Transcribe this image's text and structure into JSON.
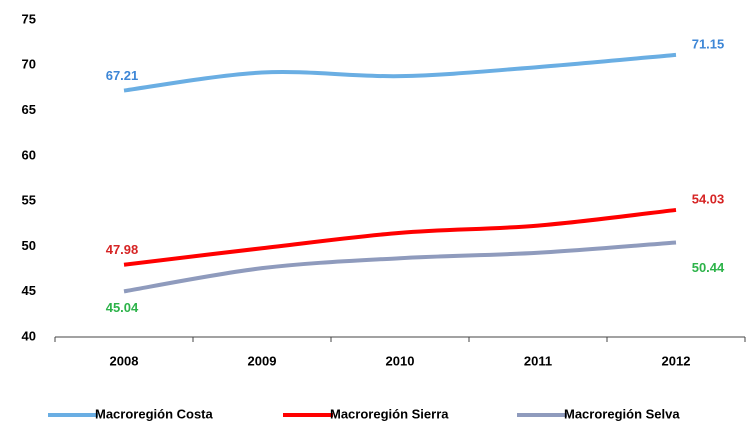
{
  "chart_data": {
    "type": "line",
    "categories": [
      "2008",
      "2009",
      "2010",
      "2011",
      "2012"
    ],
    "series": [
      {
        "name": "Macroregión Costa",
        "color": "#6aaee3",
        "label_color": "#3d86d6",
        "values": [
          67.21,
          69.2,
          68.8,
          69.8,
          71.15
        ]
      },
      {
        "name": "Macroregión Sierra",
        "color": "#ff0000",
        "label_color": "#d62424",
        "values": [
          47.98,
          49.8,
          51.5,
          52.3,
          54.03
        ]
      },
      {
        "name": "Macroregión Selva",
        "color": "#8f9bbd",
        "label_color": "#2db34a",
        "values": [
          45.04,
          47.6,
          48.7,
          49.3,
          50.44
        ]
      }
    ],
    "ylim": [
      40,
      75
    ],
    "yticks": [
      40,
      45,
      50,
      55,
      60,
      65,
      70,
      75
    ],
    "legend": "bottom"
  }
}
